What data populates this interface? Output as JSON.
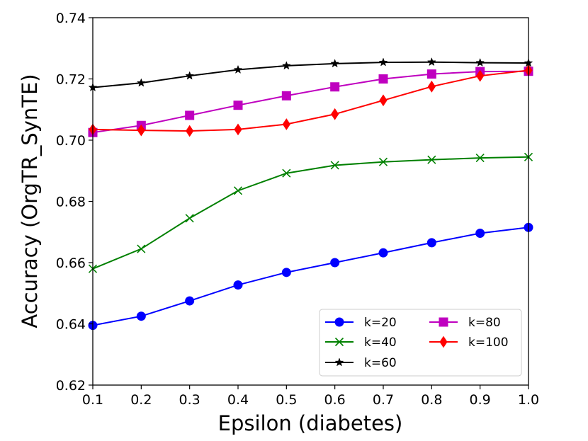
{
  "chart_data": {
    "type": "line",
    "title": "",
    "xlabel": "Epsilon (diabetes)",
    "ylabel": "Accuracy (OrgTR_SynTE)",
    "xlim": [
      0.1,
      1.0
    ],
    "ylim": [
      0.62,
      0.74
    ],
    "x": [
      0.1,
      0.2,
      0.3,
      0.4,
      0.5,
      0.6,
      0.7,
      0.8,
      0.9,
      1.0
    ],
    "x_tick_labels": [
      "0.1",
      "0.2",
      "0.3",
      "0.4",
      "0.5",
      "0.6",
      "0.7",
      "0.8",
      "0.9",
      "1.0"
    ],
    "y_ticks": [
      0.62,
      0.64,
      0.66,
      0.68,
      0.7,
      0.72,
      0.74
    ],
    "y_tick_labels": [
      "0.62",
      "0.64",
      "0.66",
      "0.68",
      "0.70",
      "0.72",
      "0.74"
    ],
    "grid": false,
    "legend_position": "lower-right",
    "series": [
      {
        "name": "k=20",
        "color": "#0000ff",
        "marker": "circle",
        "values": [
          0.6395,
          0.6425,
          0.6475,
          0.6527,
          0.6568,
          0.66,
          0.6632,
          0.6665,
          0.6696,
          0.6715
        ]
      },
      {
        "name": "k=40",
        "color": "#008000",
        "marker": "x",
        "values": [
          0.658,
          0.6645,
          0.6745,
          0.6835,
          0.6892,
          0.6918,
          0.6929,
          0.6936,
          0.6942,
          0.6945
        ]
      },
      {
        "name": "k=60",
        "color": "#000000",
        "marker": "star",
        "values": [
          0.7172,
          0.7187,
          0.721,
          0.723,
          0.7243,
          0.725,
          0.7254,
          0.7255,
          0.7253,
          0.7252
        ]
      },
      {
        "name": "k=80",
        "color": "#bf00bf",
        "marker": "square",
        "values": [
          0.7025,
          0.7048,
          0.7081,
          0.7114,
          0.7145,
          0.7174,
          0.72,
          0.7216,
          0.7224,
          0.7225
        ]
      },
      {
        "name": "k=100",
        "color": "#ff0000",
        "marker": "diamond",
        "values": [
          0.7035,
          0.7032,
          0.703,
          0.7035,
          0.7052,
          0.7085,
          0.713,
          0.7175,
          0.721,
          0.7228
        ]
      }
    ]
  }
}
